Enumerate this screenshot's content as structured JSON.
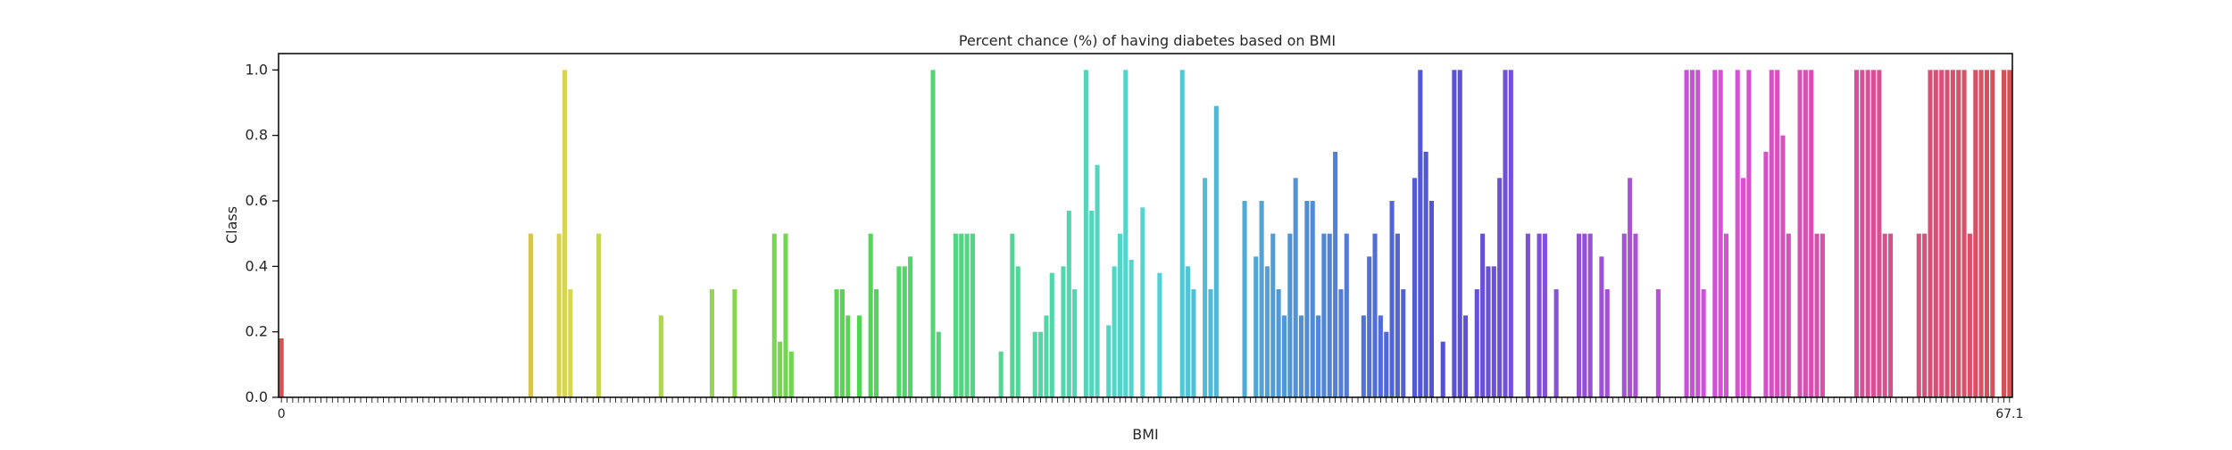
{
  "chart_data": {
    "type": "bar",
    "title": "Percent chance (%) of having diabetes based on BMI",
    "xlabel": "BMI",
    "ylabel": "Class",
    "ylim": [
      0,
      1.05
    ],
    "yticks": [
      0.0,
      0.2,
      0.4,
      0.6,
      0.8,
      1.0
    ],
    "ytick_labels": [
      "0.0",
      "0.2",
      "0.4",
      "0.6",
      "0.8",
      "1.0"
    ],
    "grid": false,
    "legend": "none",
    "palette": "husl",
    "first_category": "0",
    "last_category": "67.1",
    "values": [
      0.18,
      0,
      0,
      0,
      0,
      0,
      0,
      0,
      0,
      0,
      0,
      0,
      0,
      0,
      0,
      0,
      0,
      0,
      0,
      0,
      0,
      0,
      0,
      0,
      0,
      0,
      0,
      0,
      0,
      0,
      0,
      0,
      0,
      0,
      0,
      0,
      0,
      0,
      0,
      0,
      0,
      0,
      0,
      0,
      0.5,
      0,
      0,
      0,
      0,
      0.5,
      1.0,
      0.33,
      0,
      0,
      0,
      0,
      0.5,
      0,
      0,
      0,
      0,
      0,
      0,
      0,
      0,
      0,
      0,
      0.25,
      0,
      0,
      0,
      0,
      0,
      0,
      0,
      0,
      0.33,
      0,
      0,
      0,
      0.33,
      0,
      0,
      0,
      0,
      0,
      0,
      0.5,
      0.17,
      0.5,
      0.14,
      0,
      0,
      0,
      0,
      0,
      0,
      0,
      0.33,
      0.33,
      0.25,
      0,
      0.25,
      0,
      0.5,
      0.33,
      0,
      0,
      0,
      0.4,
      0.4,
      0.43,
      0,
      0,
      0,
      1.0,
      0.2,
      0,
      0,
      0.5,
      0.5,
      0.5,
      0.5,
      0,
      0,
      0,
      0,
      0.14,
      0,
      0.5,
      0.4,
      0,
      0,
      0.2,
      0.2,
      0.25,
      0.38,
      0,
      0.4,
      0.57,
      0.33,
      0,
      1.0,
      0.57,
      0.71,
      0,
      0.22,
      0.4,
      0.5,
      1.0,
      0.42,
      0,
      0.58,
      0,
      0,
      0.38,
      0,
      0,
      0,
      1.0,
      0.4,
      0.33,
      0,
      0.67,
      0.33,
      0.89,
      0,
      0,
      0,
      0,
      0.6,
      0,
      0.43,
      0.6,
      0.4,
      0.5,
      0.33,
      0.25,
      0.5,
      0.67,
      0.25,
      0.6,
      0.6,
      0.25,
      0.5,
      0.5,
      0.75,
      0.33,
      0.5,
      0,
      0,
      0.25,
      0.43,
      0.5,
      0.25,
      0.2,
      0.6,
      0.5,
      0.33,
      0,
      0.67,
      1.0,
      0.75,
      0.6,
      0,
      0.17,
      0,
      1.0,
      1.0,
      0.25,
      0,
      0.33,
      0.5,
      0.4,
      0.4,
      0.67,
      1.0,
      1.0,
      0,
      0,
      0.5,
      0,
      0.5,
      0.5,
      0,
      0.33,
      0,
      0,
      0,
      0.5,
      0.5,
      0.5,
      0,
      0.43,
      0.33,
      0,
      0,
      0.5,
      0.67,
      0.5,
      0,
      0,
      0,
      0.33,
      0,
      0,
      0,
      0,
      1.0,
      1.0,
      1.0,
      0.33,
      0,
      1.0,
      1.0,
      0.5,
      0,
      1.0,
      0.67,
      1.0,
      0,
      0,
      0.75,
      1.0,
      1.0,
      0.8,
      0.5,
      0,
      1.0,
      1.0,
      1.0,
      0.5,
      0.5,
      0,
      0,
      0,
      0,
      0,
      1.0,
      1.0,
      1.0,
      1.0,
      1.0,
      0.5,
      0.5,
      0,
      0,
      0,
      0,
      0.5,
      0.5,
      1.0,
      1.0,
      1.0,
      1.0,
      1.0,
      1.0,
      1.0,
      0.5,
      1.0,
      1.0,
      1.0,
      1.0,
      0,
      1.0,
      1.0
    ]
  }
}
